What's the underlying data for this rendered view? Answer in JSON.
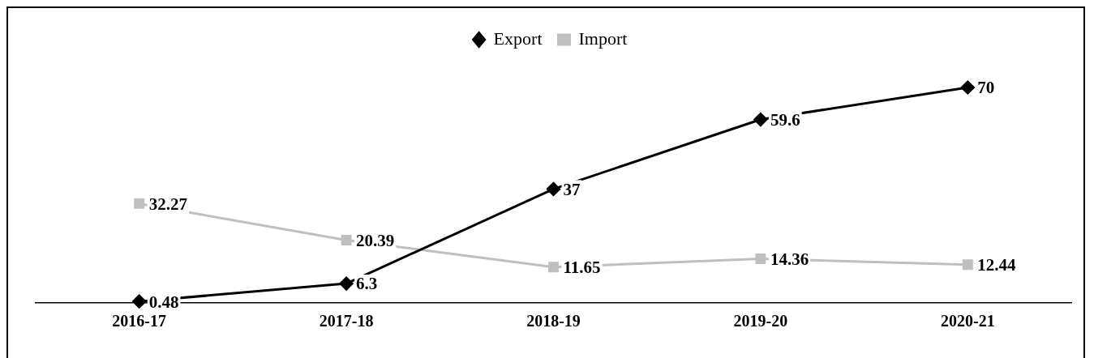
{
  "chart_data": {
    "type": "line",
    "categories": [
      "2016-17",
      "2017-18",
      "2018-19",
      "2019-20",
      "2020-21"
    ],
    "series": [
      {
        "name": "Export",
        "color": "#000000",
        "marker": "diamond",
        "values": [
          0.48,
          6.3,
          37,
          59.6,
          70
        ]
      },
      {
        "name": "Import",
        "color": "#bfbfbf",
        "marker": "square",
        "values": [
          32.27,
          20.39,
          11.65,
          14.36,
          12.44
        ]
      }
    ],
    "data_labels": true,
    "legend": "top",
    "grid": false,
    "line_style": "solid"
  }
}
